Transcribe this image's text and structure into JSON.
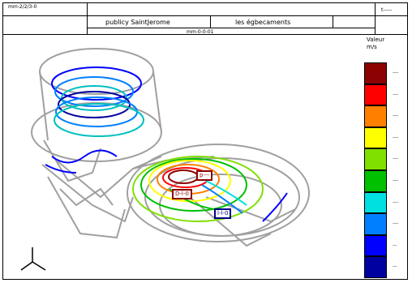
{
  "header": {
    "left_text": "mm-2/2/3-0",
    "right_text": "t-----",
    "title_1": "publicy SaintJerome",
    "title_2": "les égbecaments",
    "sub_title": "mm-0-0-01"
  },
  "legend": {
    "caption": "Valeur",
    "unit": "m/s",
    "colors": [
      "#8b0000",
      "#ff0000",
      "#ff8000",
      "#ffff00",
      "#80e000",
      "#00c000",
      "#00e0e0",
      "#0080ff",
      "#0000ff",
      "#0000a0"
    ],
    "ticks": [
      "----",
      "----",
      "----",
      "----",
      "----",
      "----",
      "----",
      "----",
      "---",
      "---"
    ]
  },
  "labels": {
    "box_1": "D-l-0",
    "box_2": "p---",
    "box_3": "l-l-0"
  },
  "axes": {
    "x": "x",
    "y": "y",
    "z": "z"
  }
}
